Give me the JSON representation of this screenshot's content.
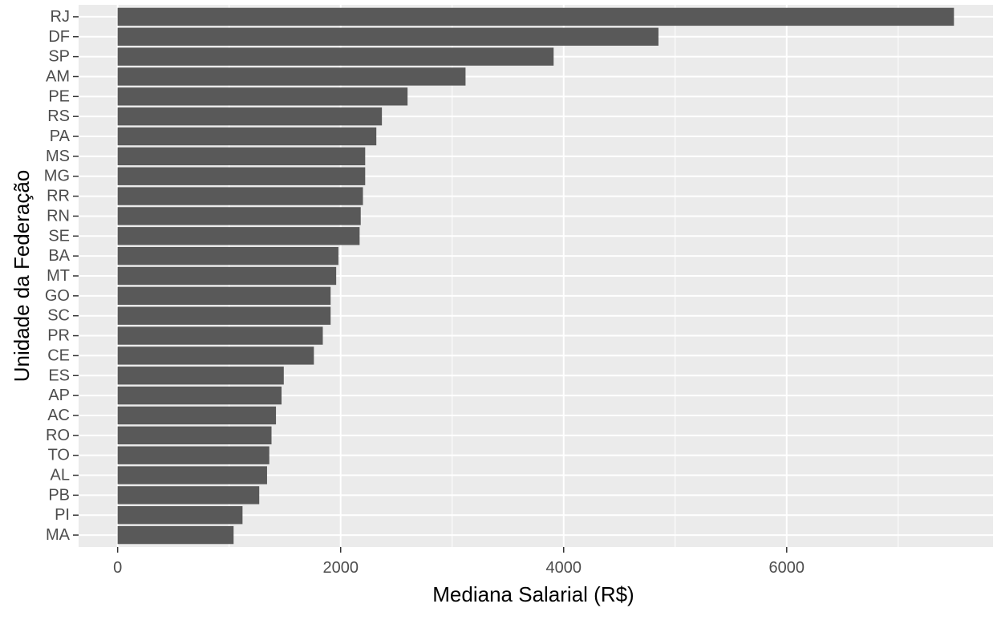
{
  "chart_data": {
    "type": "bar",
    "orientation": "horizontal",
    "categories": [
      "RJ",
      "DF",
      "SP",
      "AM",
      "PE",
      "RS",
      "PA",
      "MS",
      "MG",
      "RR",
      "RN",
      "SE",
      "BA",
      "MT",
      "GO",
      "SC",
      "PR",
      "CE",
      "ES",
      "AP",
      "AC",
      "RO",
      "TO",
      "AL",
      "PB",
      "PI",
      "MA"
    ],
    "values": [
      7500,
      4850,
      3910,
      3120,
      2600,
      2370,
      2320,
      2220,
      2220,
      2200,
      2180,
      2170,
      1980,
      1960,
      1910,
      1910,
      1840,
      1760,
      1490,
      1470,
      1420,
      1380,
      1360,
      1340,
      1270,
      1120,
      1040
    ],
    "xlabel": "Mediana Salarial (R$)",
    "ylabel": "Unidade da Federação",
    "xlim": [
      -350,
      7850
    ],
    "xticks": [
      0,
      2000,
      4000,
      6000
    ],
    "xtick_labels": [
      "0",
      "2000",
      "4000",
      "6000"
    ],
    "grid": true,
    "colors": {
      "panel": "#EBEBEB",
      "grid": "#FFFFFF",
      "bar": "#595959",
      "text": "#4D4D4D",
      "title": "#000000"
    }
  }
}
